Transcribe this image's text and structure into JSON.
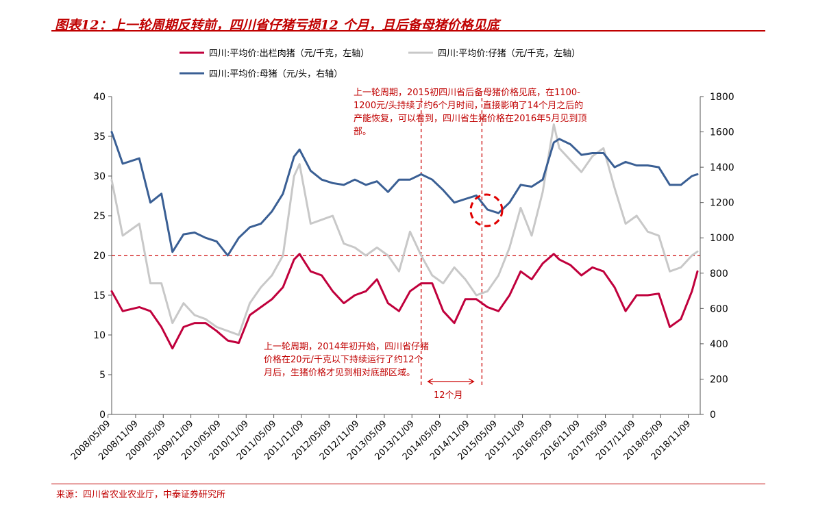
{
  "title": "图表12：上一轮周期反转前，四川省仔猪亏损12 个月，且后备母猪价格见底",
  "source": "来源：四川省农业农业厅，中泰证券研究所",
  "chart_data": {
    "type": "line",
    "xlabel": "",
    "ylabel": "",
    "y2label": "",
    "ylim": [
      0,
      40
    ],
    "y2lim": [
      0,
      1800
    ],
    "yticks": [
      "0",
      "5",
      "10",
      "15",
      "20",
      "25",
      "30",
      "35",
      "40"
    ],
    "y2ticks": [
      "0",
      "200",
      "400",
      "600",
      "800",
      "1000",
      "1200",
      "1400",
      "1600",
      "1800"
    ],
    "xticks": [
      "2008/05/09",
      "2008/11/09",
      "2009/05/09",
      "2009/11/09",
      "2010/05/09",
      "2010/11/09",
      "2011/05/09",
      "2011/11/09",
      "2012/05/09",
      "2012/11/09",
      "2013/05/09",
      "2013/11/09",
      "2014/05/09",
      "2014/11/09",
      "2015/05/09",
      "2015/11/09",
      "2016/05/09",
      "2016/11/09",
      "2017/05/09",
      "2017/11/09",
      "2018/05/09",
      "2018/11/09"
    ],
    "grid": false,
    "legend_position": "top",
    "x": [
      2008.4,
      2008.6,
      2008.9,
      2009.1,
      2009.3,
      2009.5,
      2009.7,
      2009.9,
      2010.1,
      2010.3,
      2010.5,
      2010.7,
      2010.9,
      2011.1,
      2011.3,
      2011.5,
      2011.7,
      2011.8,
      2012.0,
      2012.2,
      2012.4,
      2012.6,
      2012.8,
      2013.0,
      2013.2,
      2013.4,
      2013.6,
      2013.8,
      2014.0,
      2014.2,
      2014.4,
      2014.6,
      2014.8,
      2015.0,
      2015.2,
      2015.4,
      2015.6,
      2015.8,
      2016.0,
      2016.2,
      2016.4,
      2016.5,
      2016.7,
      2016.9,
      2017.1,
      2017.3,
      2017.5,
      2017.7,
      2017.9,
      2018.1,
      2018.3,
      2018.5,
      2018.7,
      2018.9,
      2019.0
    ],
    "series": [
      {
        "name": "四川:平均价:出栏肉猪（元/千克，左轴）",
        "axis": "left",
        "color": "#c0003c",
        "values": [
          15.5,
          13.0,
          13.5,
          13.0,
          11.0,
          8.3,
          11.0,
          11.5,
          11.5,
          10.5,
          9.3,
          9.0,
          12.5,
          13.5,
          14.5,
          16.0,
          19.5,
          20.2,
          18.0,
          17.5,
          15.5,
          14.0,
          15.0,
          15.5,
          17.0,
          14.0,
          13.0,
          15.5,
          16.5,
          16.5,
          13.0,
          11.5,
          14.5,
          14.5,
          13.5,
          13.0,
          15.0,
          18.0,
          17.0,
          19.0,
          20.2,
          19.5,
          18.8,
          17.5,
          18.5,
          18.0,
          16.0,
          13.0,
          15.0,
          15.0,
          15.2,
          11.0,
          12.0,
          15.5,
          18.0
        ]
      },
      {
        "name": "四川:平均价:仔猪（元/千克，左轴）",
        "axis": "left",
        "color": "#c8c8c8",
        "values": [
          29.5,
          22.5,
          24.0,
          16.5,
          16.5,
          11.5,
          14.0,
          12.5,
          12.0,
          11.0,
          10.5,
          10.0,
          14.0,
          16.0,
          17.5,
          20.0,
          30.0,
          31.5,
          24.0,
          24.5,
          25.0,
          21.5,
          21.0,
          20.0,
          21.0,
          20.0,
          18.0,
          23.0,
          20.0,
          17.5,
          16.5,
          18.5,
          17.0,
          15.0,
          15.5,
          17.5,
          21.0,
          26.0,
          22.5,
          28.0,
          36.5,
          33.5,
          32.0,
          30.5,
          32.5,
          33.5,
          28.5,
          24.0,
          25.0,
          23.0,
          22.5,
          18.0,
          18.5,
          20.0,
          20.5
        ]
      },
      {
        "name": "四川:平均价:母猪（元/头，右轴）",
        "axis": "right",
        "color": "#3a5f94",
        "values": [
          1600,
          1420,
          1450,
          1200,
          1250,
          920,
          1020,
          1030,
          1000,
          980,
          900,
          1000,
          1060,
          1080,
          1150,
          1250,
          1460,
          1500,
          1380,
          1330,
          1310,
          1300,
          1330,
          1300,
          1320,
          1260,
          1330,
          1330,
          1360,
          1330,
          1270,
          1200,
          1220,
          1240,
          1160,
          1140,
          1200,
          1300,
          1290,
          1330,
          1540,
          1560,
          1530,
          1470,
          1480,
          1480,
          1400,
          1430,
          1410,
          1410,
          1400,
          1300,
          1300,
          1350,
          1360
        ]
      }
    ],
    "reference_lines": [
      {
        "axis": "left",
        "y": 20
      },
      {
        "axis": "x",
        "x": 2014.0
      },
      {
        "axis": "x",
        "x": 2015.1
      }
    ],
    "annotations": [
      {
        "text": "上一轮周期，2015初四川省后备母猪价格见底，在1100-1200元/头持续了约6个月时间，直接影响了14个月之后的产能恢复，可以看到，四川省生猪价格在2016年5月见到顶部。"
      },
      {
        "text": "上一轮周期，2014年初开始，四川省仔猪价格在20元/千克以下持续运行了约12个月后，生猪价格才见到相对底部区域。"
      },
      {
        "text": "12个月"
      }
    ]
  }
}
